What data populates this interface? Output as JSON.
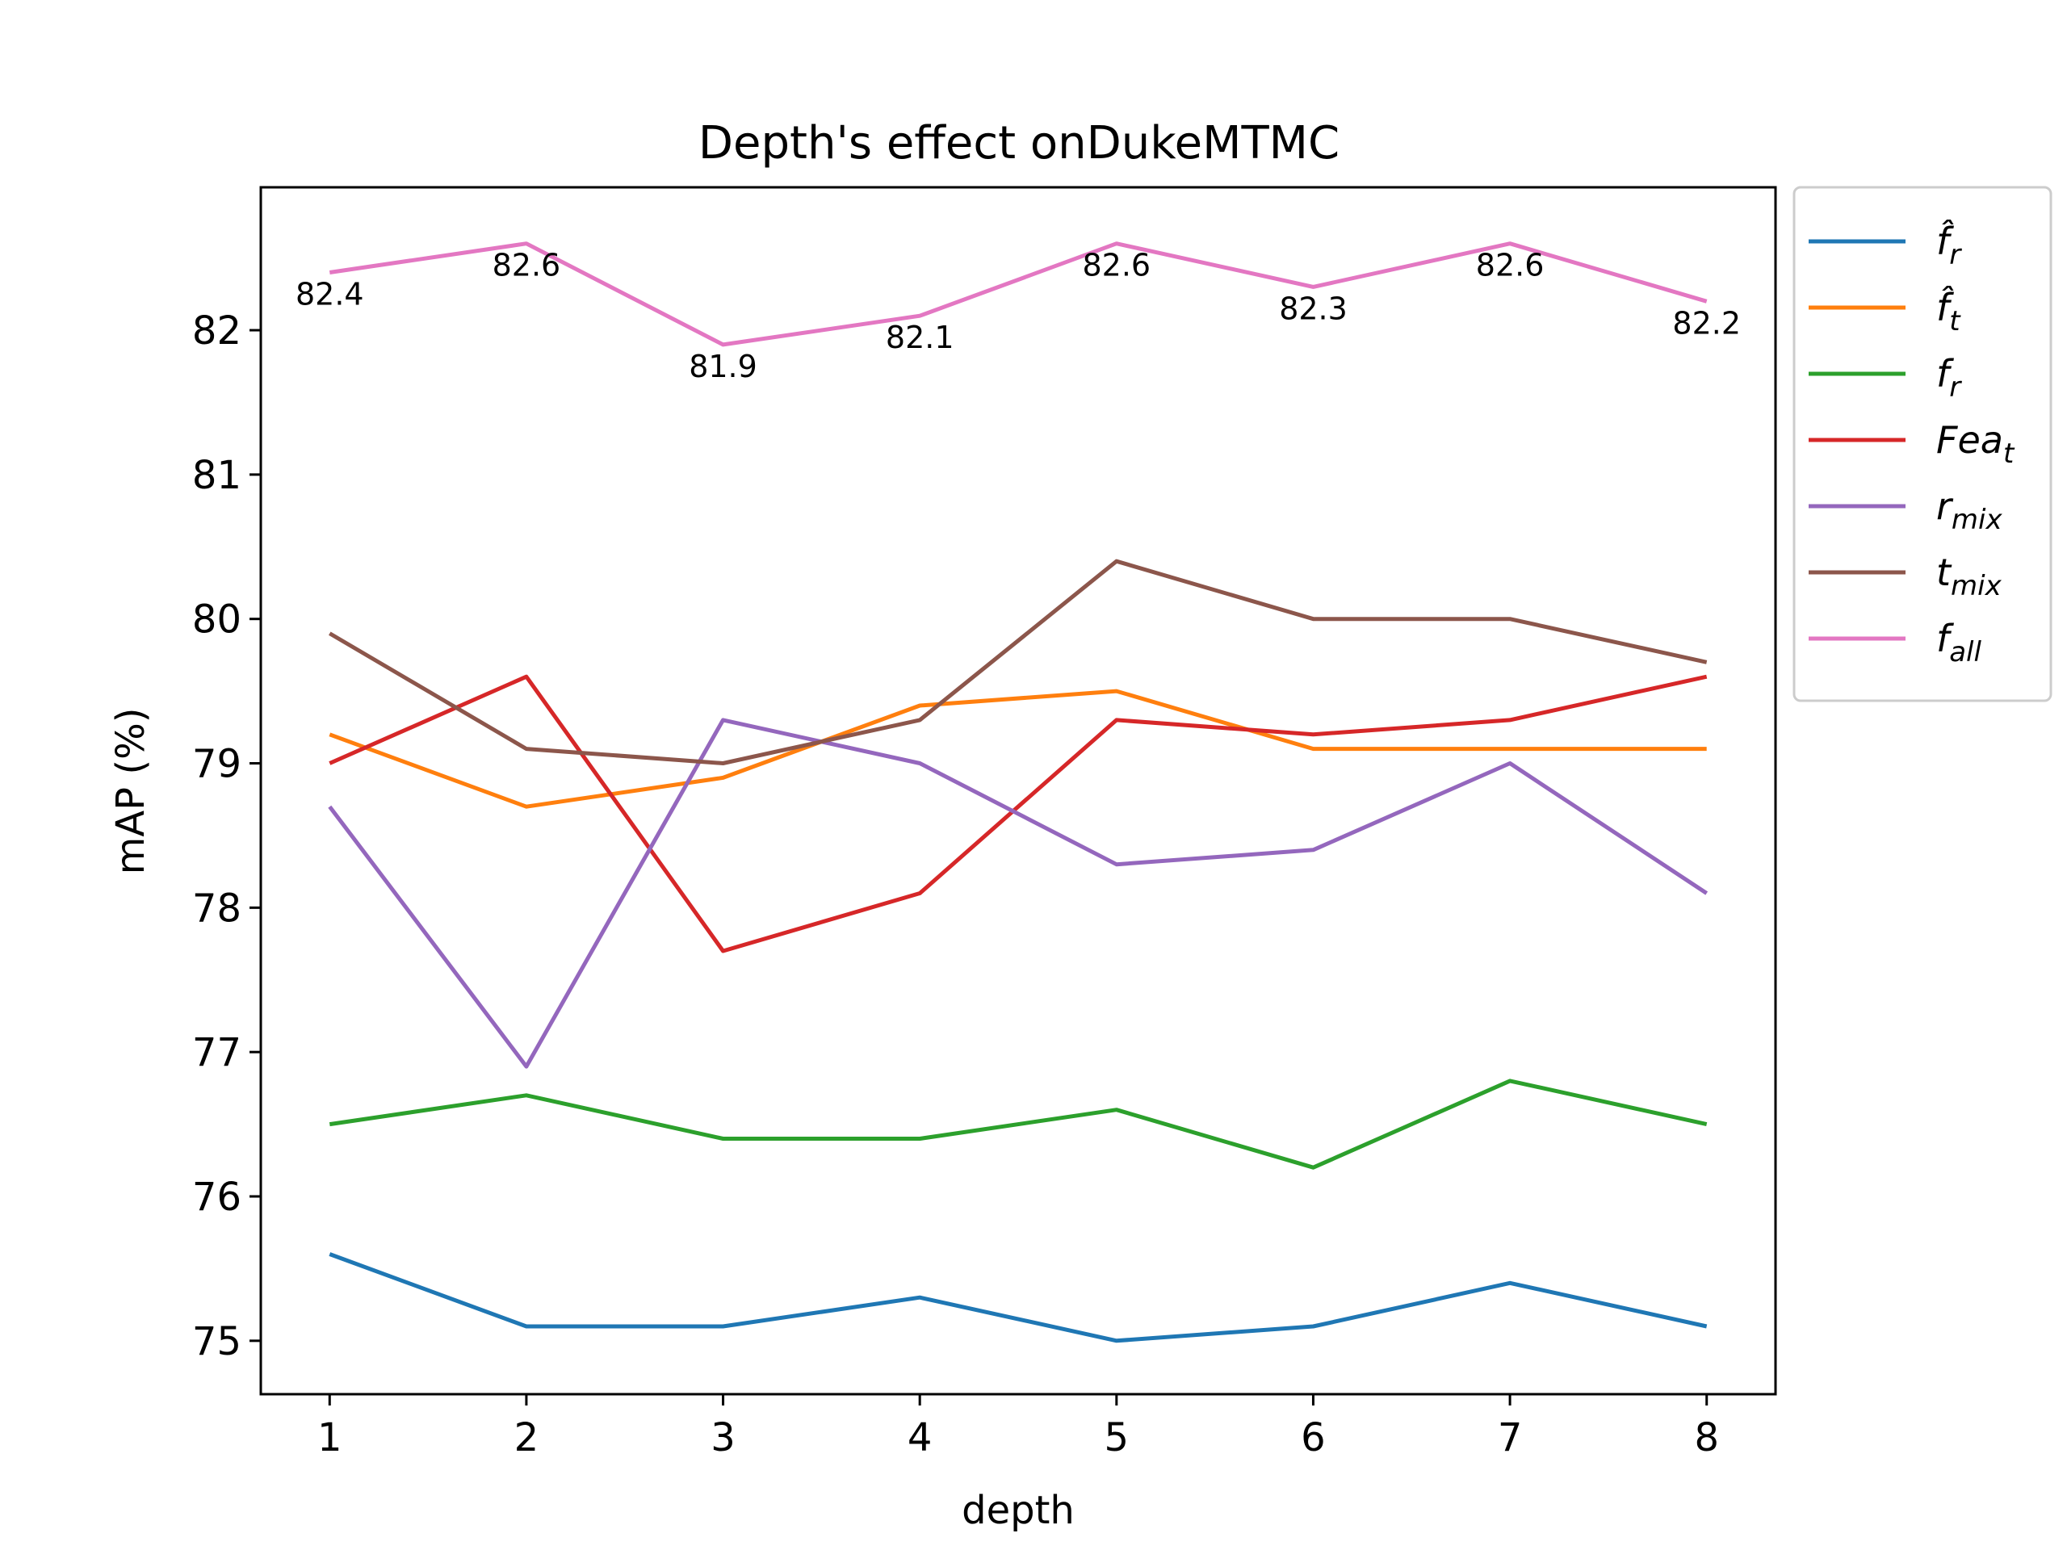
{
  "chart_data": {
    "type": "line",
    "title": "Depth's effect onDukeMTMC",
    "xlabel": "depth",
    "ylabel": "mAP (%)",
    "x": [
      1,
      2,
      3,
      4,
      5,
      6,
      7,
      8
    ],
    "xticks": [
      "1",
      "2",
      "3",
      "4",
      "5",
      "6",
      "7",
      "8"
    ],
    "yticks": [
      75,
      76,
      77,
      78,
      79,
      80,
      81,
      82
    ],
    "xlim": [
      0.65,
      8.35
    ],
    "ylim": [
      74.63,
      82.99
    ],
    "grid": false,
    "legend_position": "outside-right",
    "series": [
      {
        "name": "f̂_r",
        "base": "f̂",
        "sub": "r",
        "color": "#1f77b4",
        "values": [
          75.6,
          75.1,
          75.1,
          75.3,
          75.0,
          75.1,
          75.4,
          75.1
        ]
      },
      {
        "name": "f̂_t",
        "base": "f̂",
        "sub": "t",
        "color": "#ff7f0e",
        "values": [
          79.2,
          78.7,
          78.9,
          79.4,
          79.5,
          79.1,
          79.1,
          79.1
        ]
      },
      {
        "name": "f_r",
        "base": "f",
        "sub": "r",
        "color": "#2ca02c",
        "values": [
          76.5,
          76.7,
          76.4,
          76.4,
          76.6,
          76.2,
          76.8,
          76.5
        ]
      },
      {
        "name": "Fea_t",
        "base": "Fea",
        "sub": "t",
        "color": "#d62728",
        "values": [
          79.0,
          79.6,
          77.7,
          78.1,
          79.3,
          79.2,
          79.3,
          79.6
        ]
      },
      {
        "name": "r_mix",
        "base": "r",
        "sub": "mix",
        "color": "#9467bd",
        "values": [
          78.7,
          76.9,
          79.3,
          79.0,
          78.3,
          78.4,
          79.0,
          78.1
        ]
      },
      {
        "name": "t_mix",
        "base": "t",
        "sub": "mix",
        "color": "#8c564b",
        "values": [
          79.9,
          79.1,
          79.0,
          79.3,
          80.4,
          80.0,
          80.0,
          79.7
        ]
      },
      {
        "name": "f_all",
        "base": "f",
        "sub": "all",
        "color": "#e377c2",
        "values": [
          82.4,
          82.6,
          81.9,
          82.1,
          82.6,
          82.3,
          82.6,
          82.2
        ],
        "data_labels": [
          "82.4",
          "82.6",
          "81.9",
          "82.1",
          "82.6",
          "82.3",
          "82.6",
          "82.2"
        ]
      }
    ]
  }
}
